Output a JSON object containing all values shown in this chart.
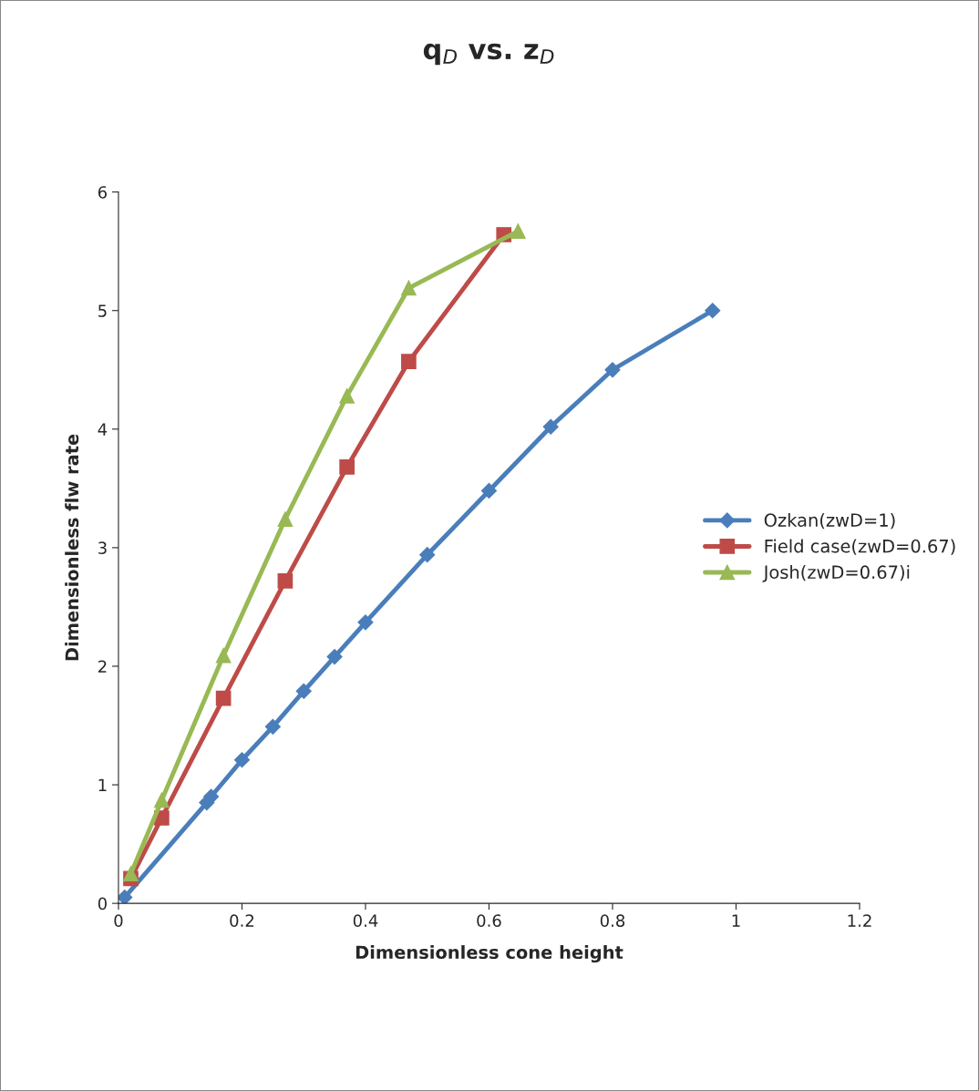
{
  "chart_data": {
    "type": "line",
    "title": "q$_{D}$ vs. z$_{D}$",
    "xlabel": "Dimensionless cone height",
    "ylabel": "Dimensionless flw rate",
    "xlim": [
      0,
      1.2
    ],
    "xticks": [
      0,
      0.2,
      0.4,
      0.6,
      0.8,
      1,
      1.2
    ],
    "ylim": [
      0,
      6
    ],
    "yticks": [
      0,
      1,
      2,
      3,
      4,
      5,
      6
    ],
    "grid": false,
    "legend": "right",
    "series": [
      {
        "name": "Ozkan(zwD=1)",
        "color": "#4a7ebb",
        "marker": "diamond",
        "x": [
          0.01,
          0.143,
          0.15,
          0.2,
          0.25,
          0.3,
          0.35,
          0.4,
          0.5,
          0.6,
          0.7,
          0.8,
          0.962
        ],
        "values": [
          0.05,
          0.85,
          0.9,
          1.21,
          1.49,
          1.79,
          2.08,
          2.37,
          2.94,
          3.48,
          4.02,
          4.5,
          5.0
        ]
      },
      {
        "name": "Field case(zwD=0.67)",
        "color": "#be4b48",
        "marker": "square",
        "x": [
          0.02,
          0.07,
          0.17,
          0.27,
          0.37,
          0.47,
          0.624
        ],
        "values": [
          0.21,
          0.72,
          1.73,
          2.72,
          3.68,
          4.57,
          5.64
        ]
      },
      {
        "name": "Josh(zwD=0.67)i",
        "color": "#98b954",
        "marker": "triangle",
        "x": [
          0.02,
          0.07,
          0.17,
          0.27,
          0.37,
          0.47,
          0.647
        ],
        "values": [
          0.25,
          0.87,
          2.09,
          3.24,
          4.28,
          5.19,
          5.67
        ]
      }
    ]
  }
}
